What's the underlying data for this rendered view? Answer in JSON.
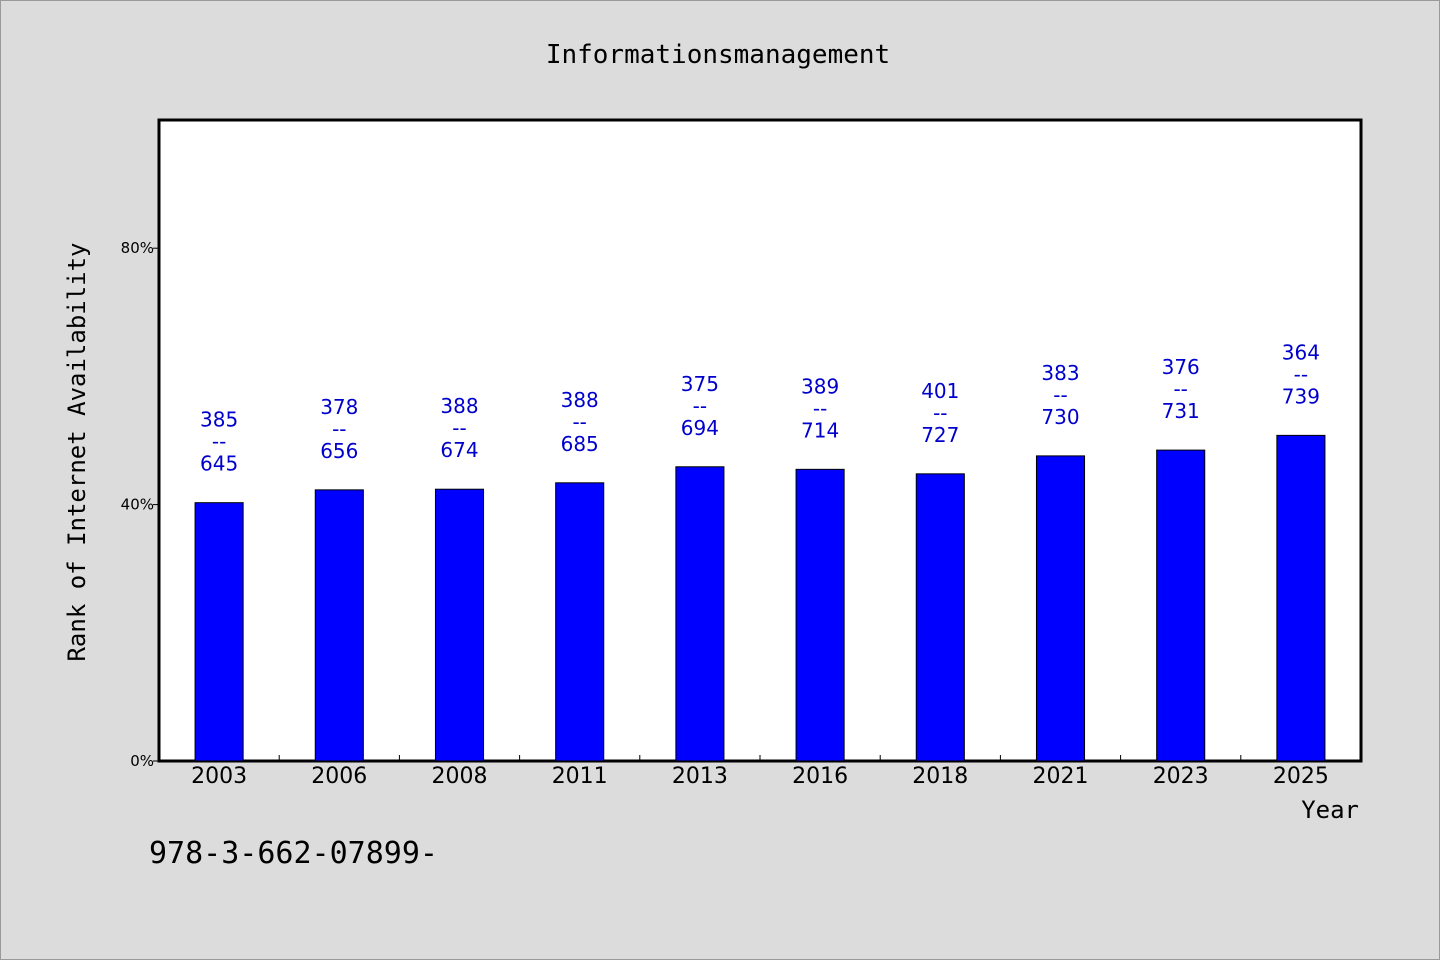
{
  "chart_data": {
    "type": "bar",
    "title": "Informationsmanagement",
    "xlabel": "Year",
    "ylabel": "Rank of Internet Availability",
    "categories": [
      "2003",
      "2006",
      "2008",
      "2011",
      "2013",
      "2016",
      "2018",
      "2021",
      "2023",
      "2025"
    ],
    "values": [
      40.3,
      42.3,
      42.4,
      43.4,
      45.9,
      45.5,
      44.8,
      47.6,
      48.5,
      50.8
    ],
    "data_labels": [
      {
        "top": "385",
        "sep": "--",
        "bottom": "645"
      },
      {
        "top": "378",
        "sep": "--",
        "bottom": "656"
      },
      {
        "top": "388",
        "sep": "--",
        "bottom": "674"
      },
      {
        "top": "388",
        "sep": "--",
        "bottom": "685"
      },
      {
        "top": "375",
        "sep": "--",
        "bottom": "694"
      },
      {
        "top": "389",
        "sep": "--",
        "bottom": "714"
      },
      {
        "top": "401",
        "sep": "--",
        "bottom": "727"
      },
      {
        "top": "383",
        "sep": "--",
        "bottom": "730"
      },
      {
        "top": "376",
        "sep": "--",
        "bottom": "731"
      },
      {
        "top": "364",
        "sep": "--",
        "bottom": "739"
      }
    ],
    "yticks": [
      0,
      40,
      80
    ],
    "ytick_labels": [
      "0%",
      "40%",
      "80%"
    ],
    "ylim": [
      0,
      100
    ],
    "grid": false,
    "bar_color": "#0000ff",
    "label_color": "#0000cc",
    "plot_background": "#ffffff",
    "page_background": "#dcdcdc"
  },
  "footer": {
    "text": "978-3-662-07899-"
  }
}
